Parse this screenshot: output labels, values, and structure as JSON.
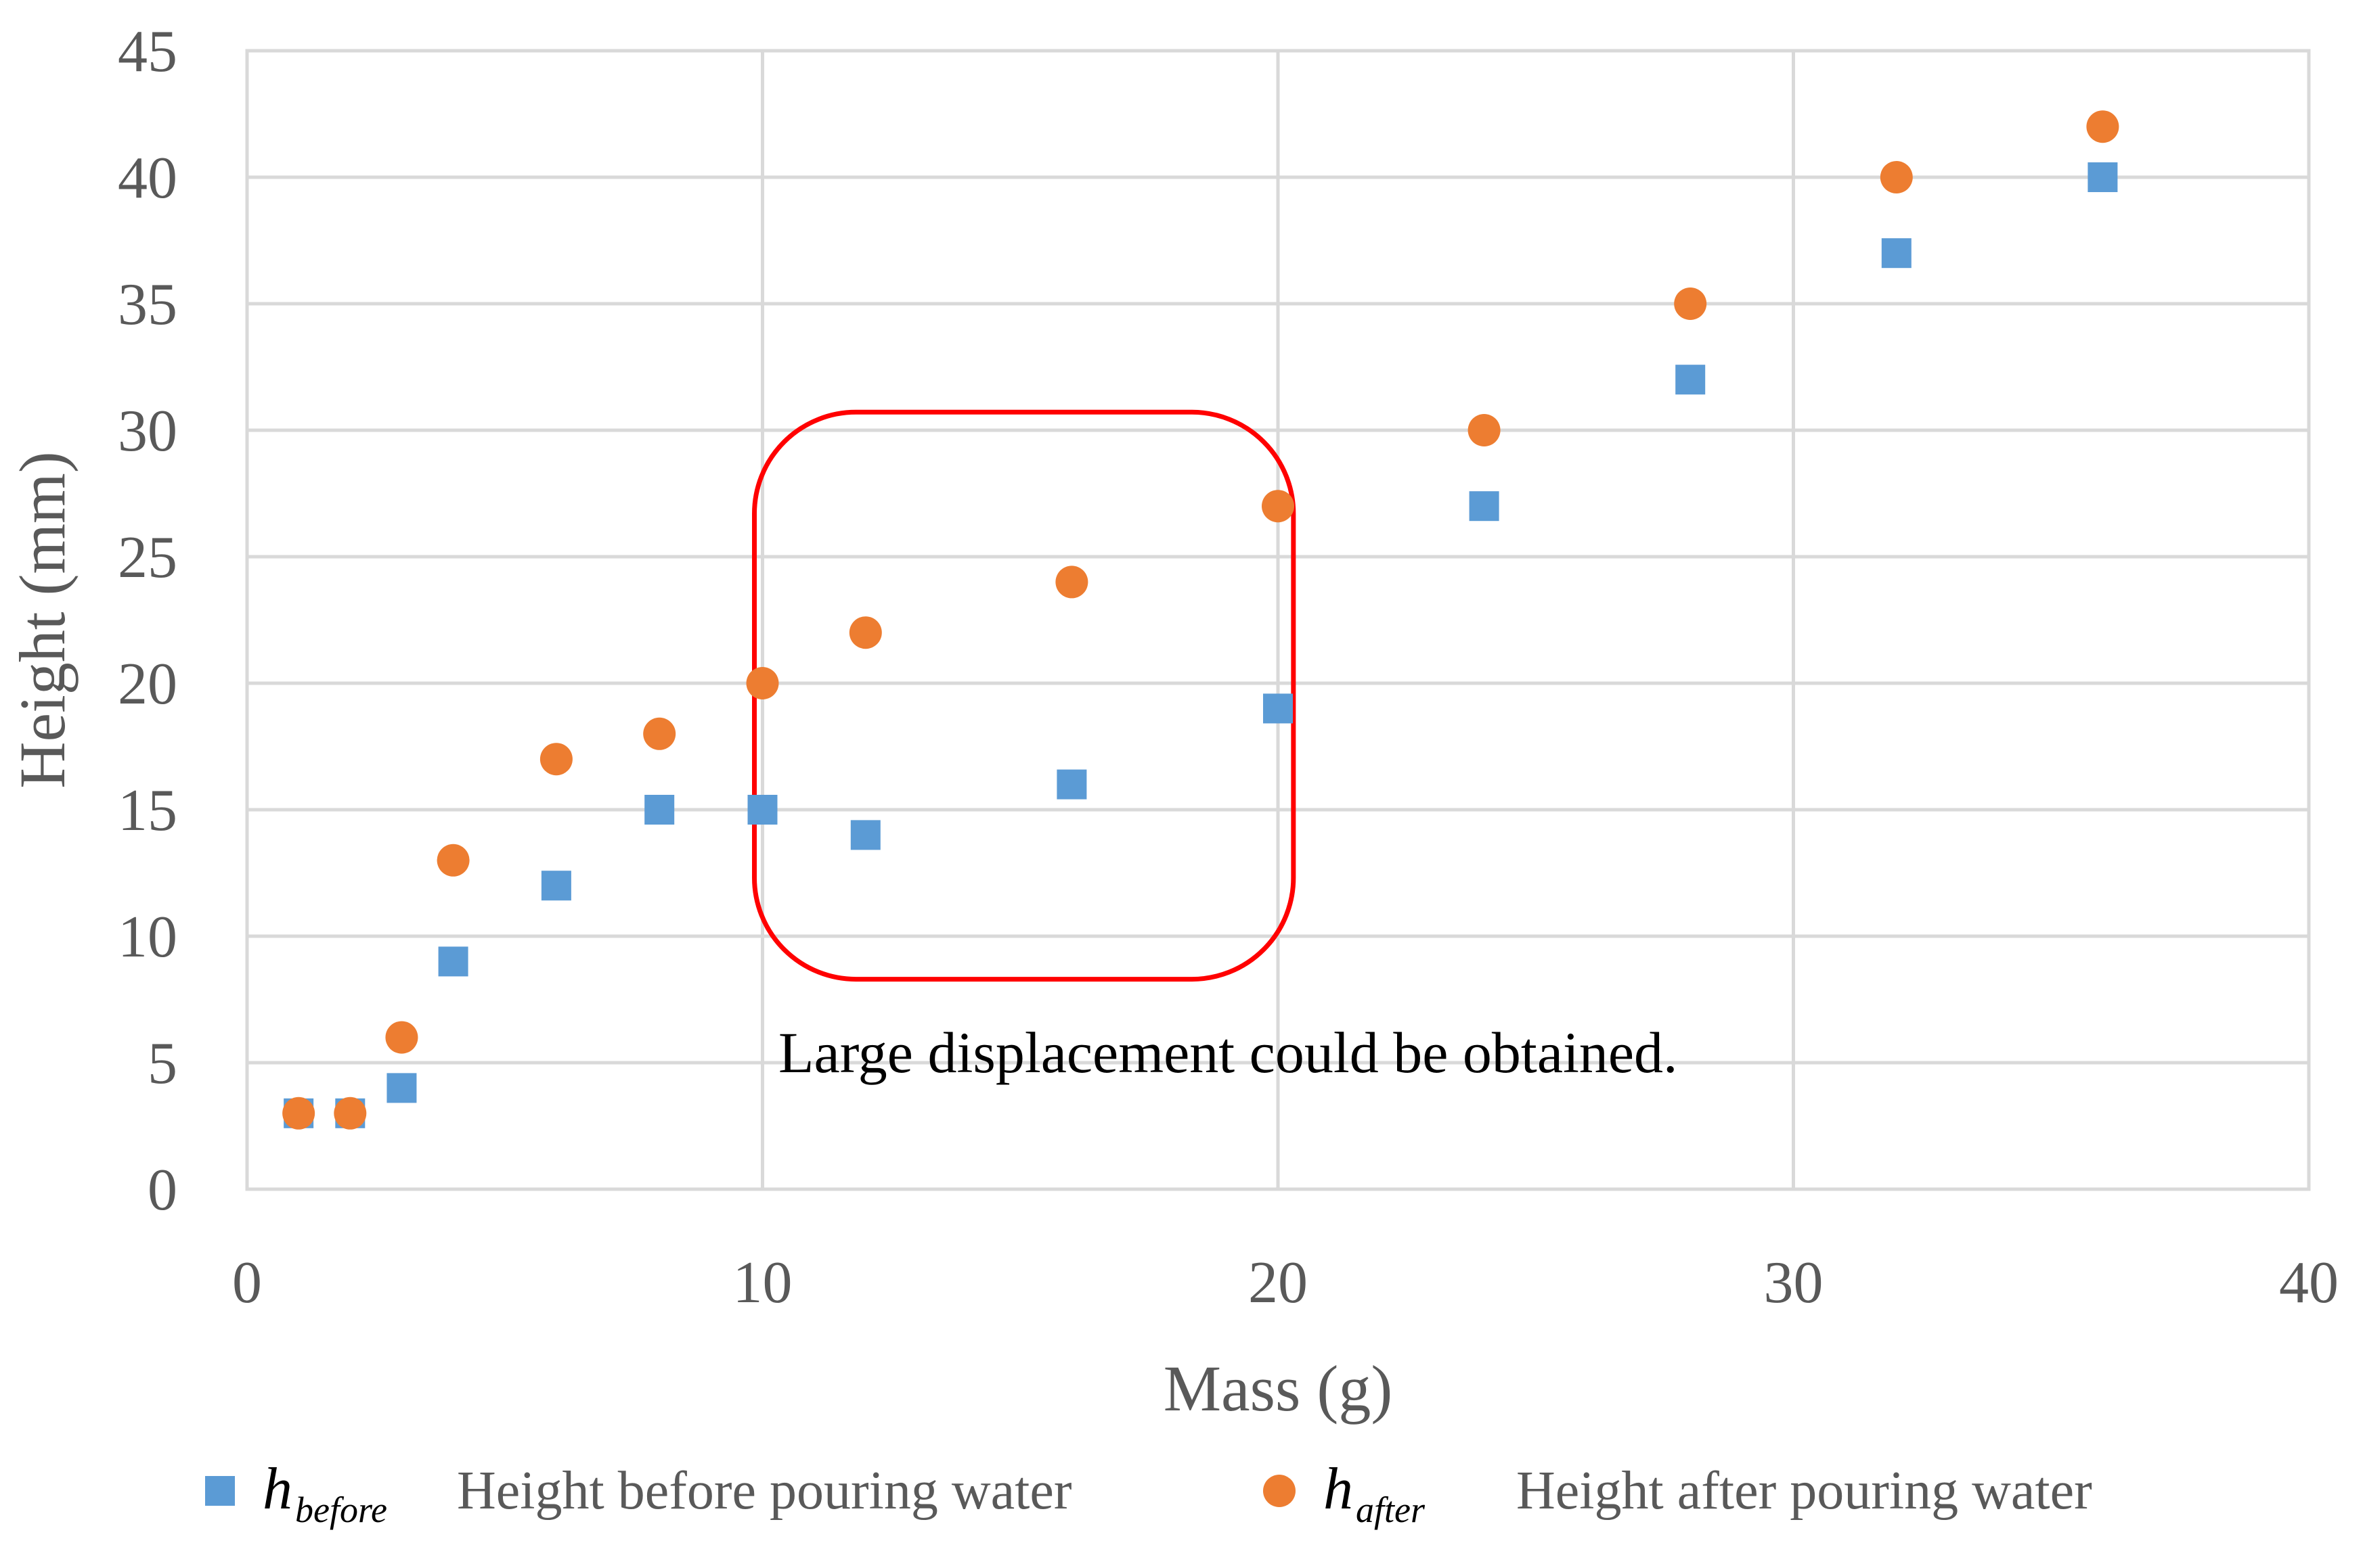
{
  "chart_data": {
    "type": "scatter",
    "title": "",
    "xlabel": "Mass (g)",
    "ylabel": "Height (mm)",
    "xlim": [
      0,
      40
    ],
    "ylim": [
      0,
      45
    ],
    "xticks": [
      "0",
      "10",
      "20",
      "30",
      "40"
    ],
    "yticks": [
      "0",
      "5",
      "10",
      "15",
      "20",
      "25",
      "30",
      "35",
      "40",
      "45"
    ],
    "grid": true,
    "legend_position": "bottom",
    "series": [
      {
        "name": "h_before",
        "symbol": "h",
        "subscript": "before",
        "description": "Height before pouring water",
        "marker": "square",
        "color": "#5b9bd5",
        "x": [
          1,
          2,
          3,
          4,
          6,
          8,
          10,
          12,
          16,
          20,
          24,
          28,
          32,
          36
        ],
        "y": [
          3,
          3,
          4,
          9,
          12,
          15,
          15,
          14,
          16,
          19,
          27,
          32,
          37,
          40
        ]
      },
      {
        "name": "h_after",
        "symbol": "h",
        "subscript": "after",
        "description": "Height after pouring water",
        "marker": "circle",
        "color": "#ed7d31",
        "x": [
          1,
          2,
          3,
          4,
          6,
          8,
          10,
          12,
          16,
          20,
          24,
          28,
          32,
          36
        ],
        "y": [
          3,
          3,
          6,
          13,
          17,
          18,
          20,
          22,
          24,
          27,
          30,
          35,
          40,
          42
        ]
      }
    ],
    "annotation": {
      "text": "Large displacement could be obtained.",
      "highlight_x_range": [
        10,
        20.3
      ],
      "highlight_y_range": [
        8.3,
        30.5
      ],
      "highlight_color": "#ff0000"
    }
  }
}
